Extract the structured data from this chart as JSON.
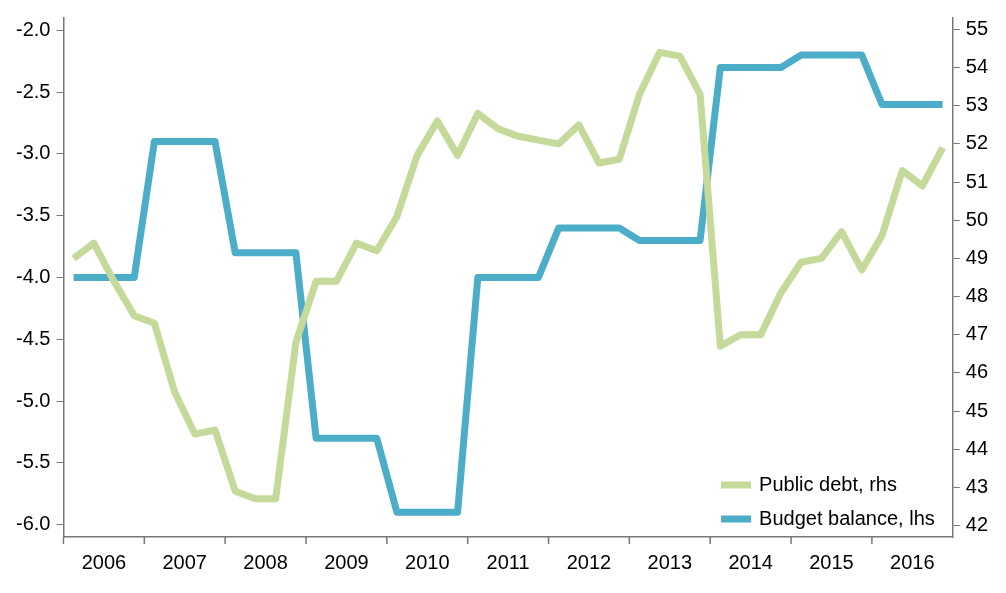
{
  "chart_data": {
    "type": "line",
    "x": [
      2006.125,
      2006.375,
      2006.625,
      2006.875,
      2007.125,
      2007.375,
      2007.625,
      2007.875,
      2008.125,
      2008.375,
      2008.625,
      2008.875,
      2009.125,
      2009.375,
      2009.625,
      2009.875,
      2010.125,
      2010.375,
      2010.625,
      2010.875,
      2011.125,
      2011.375,
      2011.625,
      2011.875,
      2012.125,
      2012.375,
      2012.625,
      2012.875,
      2013.125,
      2013.375,
      2013.625,
      2013.875,
      2014.125,
      2014.375,
      2014.625,
      2014.875,
      2015.125,
      2015.375,
      2015.625,
      2015.875,
      2016.125,
      2016.375,
      2016.625,
      2016.875
    ],
    "series": [
      {
        "name": "Public debt, rhs",
        "color": "#c4d99a",
        "axis": "y2",
        "values": [
          49.0,
          49.4,
          48.4,
          47.5,
          47.3,
          45.5,
          44.4,
          44.5,
          42.9,
          42.7,
          42.7,
          46.8,
          48.4,
          48.4,
          49.4,
          49.2,
          50.1,
          51.7,
          52.6,
          51.7,
          52.8,
          52.4,
          52.2,
          52.1,
          52.0,
          52.5,
          51.5,
          51.6,
          53.3,
          54.4,
          54.3,
          53.3,
          46.7,
          47.0,
          47.0,
          48.1,
          48.9,
          49.0,
          49.7,
          48.7,
          49.6,
          51.3,
          50.9,
          51.9
        ]
      },
      {
        "name": "Budget balance, lhs",
        "color": "#4badc7",
        "values": [
          -4.0,
          -4.0,
          -4.0,
          -4.0,
          -2.9,
          -2.9,
          -2.9,
          -2.9,
          -3.8,
          -3.8,
          -3.8,
          -3.8,
          -5.3,
          -5.3,
          -5.3,
          -5.3,
          -5.9,
          -5.9,
          -5.9,
          -5.9,
          -4.0,
          -4.0,
          -4.0,
          -4.0,
          -3.6,
          -3.6,
          -3.6,
          -3.6,
          -3.7,
          -3.7,
          -3.7,
          -3.7,
          -2.3,
          -2.3,
          -2.3,
          -2.3,
          -2.2,
          -2.2,
          -2.2,
          -2.2,
          -2.6,
          -2.6,
          -2.6,
          -2.6
        ]
      }
    ],
    "xlim": [
      2006,
      2017
    ],
    "xticks": [
      {
        "value": 2006,
        "label": null
      },
      {
        "value": 2006.5,
        "label": "2006"
      },
      {
        "value": 2007,
        "label": null
      },
      {
        "value": 2007.5,
        "label": "2007"
      },
      {
        "value": 2008,
        "label": null
      },
      {
        "value": 2008.5,
        "label": "2008"
      },
      {
        "value": 2009,
        "label": null
      },
      {
        "value": 2009.5,
        "label": "2009"
      },
      {
        "value": 2010,
        "label": null
      },
      {
        "value": 2010.5,
        "label": "2010"
      },
      {
        "value": 2011,
        "label": null
      },
      {
        "value": 2011.5,
        "label": "2011"
      },
      {
        "value": 2012,
        "label": null
      },
      {
        "value": 2012.5,
        "label": "2012"
      },
      {
        "value": 2013,
        "label": null
      },
      {
        "value": 2013.5,
        "label": "2013"
      },
      {
        "value": 2014,
        "label": null
      },
      {
        "value": 2014.5,
        "label": "2014"
      },
      {
        "value": 2015,
        "label": null
      },
      {
        "value": 2015.5,
        "label": "2015"
      },
      {
        "value": 2016,
        "label": null
      },
      {
        "value": 2016.5,
        "label": "2016"
      }
    ],
    "ylim": [
      -6.1,
      -1.9
    ],
    "yticks": [
      {
        "value": -6,
        "label": "-6.0"
      },
      -5.5,
      {
        "value": -5,
        "label": "-5.0"
      },
      -4.5,
      {
        "value": -4,
        "label": "-4.0"
      },
      -3.5,
      {
        "value": -3,
        "label": "-3.0"
      },
      -2.5,
      {
        "value": -2,
        "label": "-2.0"
      }
    ],
    "y2lim": [
      41.7,
      55.3
    ],
    "y2ticks": [
      42,
      43,
      44,
      45,
      46,
      47,
      48,
      49,
      50,
      51,
      52,
      53,
      54,
      55
    ],
    "legend": "bottom right",
    "grid": false,
    "marker": "none",
    "line_style": "solid"
  }
}
